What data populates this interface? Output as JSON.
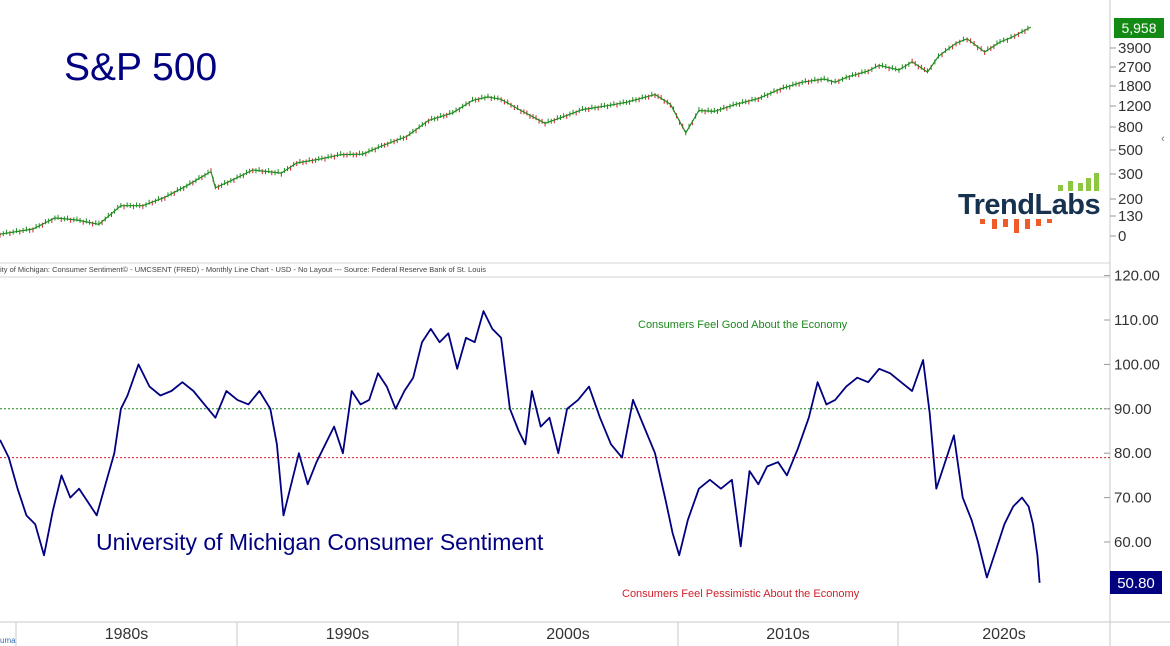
{
  "colors": {
    "up": "#1e8c1e",
    "down": "#d11f2a",
    "line": "#000080",
    "good": "#1a8a1a",
    "bad": "#d11f2a",
    "title": "#000080",
    "last_price_bg": "#138a13",
    "last_sent_bg": "#000080"
  },
  "top_panel": {
    "title": "S&P 500",
    "last_value_label": "5,958",
    "brand_name": "TrendLabs",
    "series_caption": "ity of Michigan: Consumer Sentiment© - UMCSENT (FRED) - Monthly Line Chart - USD - No Layout --- Source: Federal Reserve Bank of St. Louis"
  },
  "bottom_panel": {
    "title": "University of Michigan Consumer Sentiment",
    "good_label": "Consumers Feel Good About the Economy",
    "bad_label": "Consumers Feel Pessimistic About the Economy",
    "last_value_label": "50.80"
  },
  "footer": {
    "watermark": "uma"
  },
  "chart_data": [
    {
      "type": "line",
      "title": "S&P 500",
      "y_scale": "log",
      "y_tick_labels": [
        "0",
        "130",
        "200",
        "300",
        "500",
        "800",
        "1200",
        "1800",
        "2700",
        "3900"
      ],
      "x": [
        1978.0,
        1979.5,
        1980.5,
        1981.5,
        1982.5,
        1983.5,
        1984.5,
        1985.5,
        1986.5,
        1987.6,
        1987.8,
        1988.5,
        1989.5,
        1990.8,
        1991.5,
        1992.5,
        1993.5,
        1994.5,
        1995.5,
        1996.5,
        1997.5,
        1998.6,
        1999.5,
        2000.2,
        2000.8,
        2001.7,
        2002.8,
        2003.5,
        2004.5,
        2005.5,
        2006.5,
        2007.8,
        2008.5,
        2009.2,
        2009.8,
        2010.5,
        2011.5,
        2012.5,
        2013.5,
        2014.5,
        2015.5,
        2016.0,
        2016.5,
        2017.5,
        2018.0,
        2018.9,
        2019.5,
        2020.2,
        2020.7,
        2021.5,
        2022.0,
        2022.8,
        2023.5,
        2024.0,
        2024.5,
        2024.9
      ],
      "values": [
        90,
        100,
        125,
        120,
        110,
        160,
        160,
        190,
        240,
        320,
        230,
        265,
        330,
        310,
        380,
        410,
        450,
        455,
        550,
        650,
        900,
        1050,
        1350,
        1450,
        1380,
        1100,
        850,
        950,
        1120,
        1200,
        1300,
        1520,
        1250,
        700,
        1100,
        1080,
        1250,
        1400,
        1700,
        1950,
        2080,
        1950,
        2150,
        2450,
        2750,
        2500,
        2950,
        2400,
        3300,
        4300,
        4700,
        3600,
        4400,
        4800,
        5400,
        5958
      ],
      "last_value": 5958
    },
    {
      "type": "line",
      "title": "University of Michigan Consumer Sentiment",
      "ylim": [
        45,
        120
      ],
      "y_ticks": [
        60,
        70,
        80,
        90,
        100,
        110,
        120
      ],
      "y_tick_labels": [
        "60.00",
        "70.00",
        "80.00",
        "90.00",
        "100.00",
        "110.00",
        "120.00"
      ],
      "x_tick_labels": [
        "1980s",
        "1990s",
        "2000s",
        "2010s",
        "2020s"
      ],
      "reference_lines": [
        {
          "value": 90,
          "label": "Consumers Feel Good About the Economy",
          "color": "good"
        },
        {
          "value": 79,
          "label": "Consumers Feel Pessimistic About the Economy",
          "color": "bad"
        }
      ],
      "x": [
        1978.0,
        1978.4,
        1978.8,
        1979.2,
        1979.6,
        1980.0,
        1980.4,
        1980.8,
        1981.2,
        1981.6,
        1982.0,
        1982.4,
        1982.8,
        1983.2,
        1983.5,
        1983.8,
        1984.3,
        1984.8,
        1985.3,
        1985.8,
        1986.3,
        1986.8,
        1987.3,
        1987.8,
        1988.3,
        1988.8,
        1989.3,
        1989.8,
        1990.3,
        1990.6,
        1990.9,
        1991.2,
        1991.6,
        1992.0,
        1992.4,
        1992.8,
        1993.2,
        1993.6,
        1994.0,
        1994.4,
        1994.8,
        1995.2,
        1995.6,
        1996.0,
        1996.4,
        1996.8,
        1997.2,
        1997.6,
        1998.0,
        1998.4,
        1998.8,
        1999.2,
        1999.6,
        2000.0,
        2000.4,
        2000.8,
        2001.2,
        2001.6,
        2001.9,
        2002.2,
        2002.6,
        2003.0,
        2003.4,
        2003.8,
        2004.3,
        2004.8,
        2005.3,
        2005.8,
        2006.3,
        2006.8,
        2007.3,
        2007.8,
        2008.3,
        2008.6,
        2008.9,
        2009.3,
        2009.8,
        2010.3,
        2010.8,
        2011.3,
        2011.7,
        2012.1,
        2012.5,
        2012.9,
        2013.4,
        2013.8,
        2014.3,
        2014.8,
        2015.2,
        2015.6,
        2016.0,
        2016.5,
        2017.0,
        2017.5,
        2018.0,
        2018.5,
        2019.0,
        2019.5,
        2020.0,
        2020.3,
        2020.6,
        2021.0,
        2021.4,
        2021.8,
        2022.2,
        2022.5,
        2022.9,
        2023.3,
        2023.7,
        2024.1,
        2024.5,
        2024.8,
        2025.0,
        2025.2,
        2025.3
      ],
      "values": [
        83,
        79,
        72,
        66,
        64,
        57,
        67,
        75,
        70,
        72,
        69,
        66,
        73,
        80,
        90,
        93,
        100,
        95,
        93,
        94,
        96,
        94,
        91,
        88,
        94,
        92,
        91,
        94,
        90,
        82,
        66,
        72,
        80,
        73,
        78,
        82,
        86,
        80,
        94,
        91,
        92,
        98,
        95,
        90,
        94,
        97,
        105,
        108,
        105,
        107,
        99,
        106,
        105,
        112,
        108,
        106,
        90,
        85,
        82,
        94,
        86,
        88,
        80,
        90,
        92,
        95,
        88,
        82,
        79,
        92,
        86,
        80,
        69,
        62,
        57,
        65,
        72,
        74,
        72,
        74,
        59,
        76,
        73,
        77,
        78,
        75,
        81,
        88,
        96,
        91,
        92,
        95,
        97,
        96,
        99,
        98,
        96,
        94,
        101,
        89,
        72,
        78,
        84,
        70,
        65,
        60,
        52,
        58,
        64,
        68,
        70,
        68,
        64,
        57,
        50.8
      ],
      "last_value": 50.8
    }
  ]
}
